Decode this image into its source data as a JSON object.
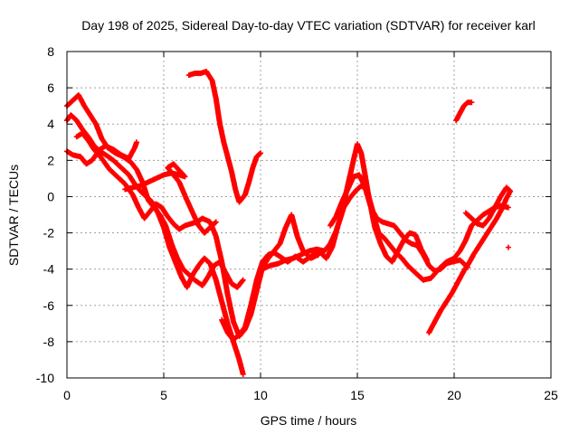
{
  "chart_data": {
    "type": "scatter",
    "title": "Day 198 of 2025, Sidereal Day-to-day VTEC variation (SDTVAR) for receiver karl",
    "xlabel": "GPS time / hours",
    "ylabel": "SDTVAR / TECUs",
    "xlim": [
      0,
      25
    ],
    "ylim": [
      -10,
      8
    ],
    "xticks": [
      "0",
      "5",
      "10",
      "15",
      "20",
      "25"
    ],
    "yticks": [
      "-10",
      "-8",
      "-6",
      "-4",
      "-2",
      "0",
      "2",
      "4",
      "6",
      "8"
    ],
    "grid": true,
    "marker": "plus",
    "color": "#ff0000",
    "series": [
      {
        "points": [
          [
            0,
            5.0
          ],
          [
            0.3,
            5.3
          ],
          [
            0.6,
            5.6
          ],
          [
            0.9,
            5.0
          ],
          [
            1.2,
            4.5
          ],
          [
            1.5,
            4.0
          ],
          [
            1.8,
            3.2
          ],
          [
            2.1,
            2.7
          ],
          [
            2.5,
            2.4
          ],
          [
            2.9,
            2.2
          ],
          [
            3.3,
            1.9
          ],
          [
            3.6,
            1.5
          ],
          [
            3.9,
            0.8
          ],
          [
            4.2,
            -0.2
          ],
          [
            4.5,
            -0.6
          ],
          [
            4.8,
            -1.0
          ],
          [
            5.1,
            -1.6
          ],
          [
            5.4,
            -2.6
          ],
          [
            5.7,
            -3.4
          ],
          [
            6.0,
            -4.0
          ],
          [
            6.3,
            -4.3
          ],
          [
            6.6,
            -4.6
          ],
          [
            7.0,
            -4.9
          ],
          [
            7.3,
            -4.4
          ],
          [
            7.6,
            -3.8
          ],
          [
            7.9,
            -3.6
          ],
          [
            8.2,
            -4.2
          ],
          [
            8.5,
            -4.8
          ],
          [
            8.8,
            -5.0
          ],
          [
            9.1,
            -4.6
          ]
        ]
      },
      {
        "points": [
          [
            0,
            4.2
          ],
          [
            0.2,
            4.5
          ],
          [
            0.5,
            4.2
          ],
          [
            0.8,
            3.7
          ],
          [
            1.1,
            3.3
          ],
          [
            1.4,
            2.8
          ],
          [
            1.7,
            2.5
          ],
          [
            2.0,
            2.3
          ],
          [
            2.4,
            2.0
          ],
          [
            2.8,
            1.6
          ],
          [
            3.2,
            1.2
          ],
          [
            3.5,
            0.7
          ],
          [
            3.8,
            0.3
          ],
          [
            4.1,
            0.0
          ],
          [
            4.4,
            -0.3
          ],
          [
            4.7,
            -0.9
          ],
          [
            5.0,
            -1.7
          ],
          [
            5.3,
            -2.8
          ],
          [
            5.6,
            -3.6
          ],
          [
            5.9,
            -4.4
          ],
          [
            6.2,
            -5.0
          ],
          [
            6.5,
            -4.3
          ],
          [
            6.8,
            -3.8
          ],
          [
            7.1,
            -3.4
          ],
          [
            7.4,
            -3.7
          ],
          [
            7.7,
            -4.6
          ],
          [
            8.0,
            -5.8
          ],
          [
            8.3,
            -7.0
          ],
          [
            8.6,
            -8.0
          ],
          [
            8.9,
            -9.0
          ],
          [
            9.1,
            -9.8
          ]
        ]
      },
      {
        "points": [
          [
            0.5,
            3.3
          ],
          [
            0.8,
            3.5
          ],
          [
            1.1,
            3.1
          ],
          [
            1.4,
            2.6
          ],
          [
            1.8,
            2.1
          ],
          [
            2.2,
            1.5
          ],
          [
            2.6,
            1.1
          ],
          [
            3.0,
            0.7
          ],
          [
            3.4,
            0.1
          ],
          [
            3.7,
            -0.6
          ],
          [
            4.0,
            -1.2
          ],
          [
            4.3,
            -0.8
          ],
          [
            4.6,
            -0.4
          ],
          [
            4.9,
            -0.6
          ],
          [
            5.2,
            -1.1
          ],
          [
            5.5,
            -1.5
          ],
          [
            5.8,
            -1.8
          ],
          [
            6.1,
            -1.6
          ],
          [
            6.4,
            -1.5
          ],
          [
            6.7,
            -1.4
          ],
          [
            7.0,
            -1.2
          ],
          [
            7.4,
            -1.4
          ],
          [
            7.7,
            -2.2
          ],
          [
            8.0,
            -3.6
          ],
          [
            8.3,
            -5.4
          ],
          [
            8.6,
            -6.9
          ],
          [
            8.9,
            -7.7
          ],
          [
            9.2,
            -7.3
          ],
          [
            9.5,
            -6.5
          ],
          [
            9.8,
            -5.2
          ],
          [
            10.1,
            -3.9
          ],
          [
            10.4,
            -3.4
          ],
          [
            10.7,
            -3.0
          ],
          [
            11.0,
            -2.6
          ],
          [
            11.3,
            -1.7
          ],
          [
            11.6,
            -1.0
          ],
          [
            11.9,
            -2.2
          ],
          [
            12.2,
            -3.0
          ],
          [
            12.6,
            -3.4
          ],
          [
            13.0,
            -3.2
          ]
        ]
      },
      {
        "points": [
          [
            0,
            2.5
          ],
          [
            0.3,
            2.3
          ],
          [
            0.7,
            2.2
          ],
          [
            1.0,
            1.8
          ],
          [
            1.3,
            2.0
          ],
          [
            1.7,
            2.6
          ],
          [
            2.0,
            2.8
          ],
          [
            2.4,
            2.6
          ],
          [
            2.8,
            2.3
          ],
          [
            3.2,
            2.1
          ],
          [
            3.5,
            2.7
          ],
          [
            3.6,
            3.0
          ]
        ]
      },
      {
        "points": [
          [
            3.0,
            0.4
          ],
          [
            3.4,
            0.5
          ],
          [
            3.8,
            0.6
          ],
          [
            4.2,
            0.8
          ],
          [
            4.6,
            1.0
          ],
          [
            5.0,
            1.2
          ],
          [
            5.4,
            1.3
          ],
          [
            5.8,
            1.2
          ],
          [
            6.1,
            1.1
          ],
          [
            5.5,
            1.8
          ],
          [
            5.2,
            1.6
          ],
          [
            5.8,
            0.8
          ],
          [
            6.2,
            -0.2
          ],
          [
            6.5,
            -0.9
          ],
          [
            6.8,
            -1.6
          ],
          [
            7.1,
            -2.0
          ],
          [
            7.4,
            -1.7
          ],
          [
            7.7,
            -1.4
          ]
        ]
      },
      {
        "points": [
          [
            6.3,
            6.7
          ],
          [
            6.6,
            6.8
          ],
          [
            6.9,
            6.8
          ],
          [
            7.2,
            6.9
          ],
          [
            7.5,
            6.4
          ],
          [
            7.7,
            5.4
          ],
          [
            7.9,
            4.0
          ],
          [
            8.1,
            3.0
          ],
          [
            8.3,
            2.2
          ],
          [
            8.5,
            1.4
          ],
          [
            8.7,
            0.4
          ],
          [
            8.9,
            -0.3
          ],
          [
            9.2,
            0.1
          ],
          [
            9.4,
            0.8
          ],
          [
            9.6,
            1.6
          ],
          [
            9.8,
            2.2
          ],
          [
            10.0,
            2.4
          ]
        ]
      },
      {
        "points": [
          [
            8.0,
            -6.8
          ],
          [
            8.3,
            -7.5
          ],
          [
            8.6,
            -7.9
          ],
          [
            8.9,
            -7.6
          ],
          [
            9.2,
            -7.2
          ],
          [
            9.5,
            -6.0
          ],
          [
            9.8,
            -4.6
          ],
          [
            10.1,
            -3.6
          ],
          [
            10.4,
            -3.2
          ],
          [
            10.7,
            -3.1
          ],
          [
            11.0,
            -3.3
          ],
          [
            11.4,
            -3.6
          ],
          [
            11.8,
            -3.3
          ],
          [
            12.2,
            -3.6
          ],
          [
            12.6,
            -3.3
          ],
          [
            13.0,
            -3.0
          ],
          [
            13.4,
            -3.4
          ],
          [
            13.7,
            -2.8
          ],
          [
            14.0,
            -1.6
          ],
          [
            14.3,
            -0.6
          ],
          [
            14.6,
            -0.1
          ],
          [
            14.9,
            0.3
          ],
          [
            15.2,
            0.6
          ],
          [
            15.5,
            0.4
          ],
          [
            15.8,
            -0.9
          ],
          [
            16.1,
            -2.0
          ],
          [
            16.4,
            -2.3
          ],
          [
            16.7,
            -2.7
          ],
          [
            17.0,
            -3.1
          ],
          [
            17.3,
            -3.4
          ],
          [
            17.6,
            -3.8
          ],
          [
            18.0,
            -4.2
          ],
          [
            18.4,
            -4.6
          ],
          [
            18.8,
            -4.5
          ],
          [
            19.2,
            -4.0
          ],
          [
            19.6,
            -3.6
          ],
          [
            20.0,
            -3.4
          ],
          [
            20.3,
            -3.0
          ],
          [
            20.6,
            -2.4
          ],
          [
            20.9,
            -1.6
          ],
          [
            21.2,
            -1.3
          ],
          [
            21.5,
            -1.0
          ],
          [
            21.8,
            -0.8
          ],
          [
            22.1,
            -0.6
          ],
          [
            22.4,
            -0.5
          ],
          [
            22.8,
            -0.6
          ]
        ]
      },
      {
        "points": [
          [
            10.1,
            -4.0
          ],
          [
            10.5,
            -3.8
          ],
          [
            10.9,
            -3.7
          ],
          [
            11.3,
            -3.5
          ],
          [
            11.7,
            -3.4
          ],
          [
            12.1,
            -3.2
          ],
          [
            12.5,
            -3.0
          ],
          [
            12.9,
            -2.9
          ],
          [
            13.3,
            -3.0
          ],
          [
            13.6,
            -2.6
          ],
          [
            13.9,
            -1.9
          ],
          [
            14.2,
            -0.9
          ],
          [
            14.5,
            0.6
          ],
          [
            14.8,
            2.0
          ],
          [
            15.0,
            2.9
          ],
          [
            15.2,
            2.4
          ],
          [
            15.4,
            1.2
          ],
          [
            15.6,
            -0.1
          ],
          [
            15.8,
            -0.8
          ],
          [
            16.0,
            -1.2
          ],
          [
            16.3,
            -1.4
          ],
          [
            16.6,
            -1.5
          ],
          [
            16.9,
            -1.6
          ],
          [
            17.2,
            -2.0
          ],
          [
            17.5,
            -2.4
          ],
          [
            17.8,
            -2.6
          ],
          [
            18.1,
            -2.7
          ],
          [
            18.4,
            -3.2
          ],
          [
            18.7,
            -3.8
          ],
          [
            19.0,
            -4.1
          ],
          [
            19.3,
            -4.0
          ],
          [
            19.6,
            -3.7
          ],
          [
            19.9,
            -3.6
          ],
          [
            20.3,
            -3.5
          ],
          [
            20.7,
            -3.9
          ]
        ]
      },
      {
        "points": [
          [
            13.6,
            -1.6
          ],
          [
            13.9,
            -1.1
          ],
          [
            14.2,
            -0.3
          ],
          [
            14.5,
            0.4
          ],
          [
            14.8,
            1.1
          ],
          [
            15.1,
            1.2
          ],
          [
            15.4,
            0.5
          ],
          [
            15.7,
            -0.6
          ],
          [
            15.9,
            -1.7
          ],
          [
            16.2,
            -2.6
          ],
          [
            16.5,
            -3.3
          ],
          [
            16.8,
            -3.6
          ],
          [
            17.1,
            -3.0
          ],
          [
            17.4,
            -2.4
          ],
          [
            17.7,
            -2.0
          ],
          [
            18.0,
            -2.1
          ],
          [
            18.3,
            -2.9
          ],
          [
            18.6,
            -3.5
          ]
        ]
      },
      {
        "points": [
          [
            18.7,
            -7.5
          ],
          [
            19.0,
            -6.9
          ],
          [
            19.3,
            -6.3
          ],
          [
            19.6,
            -5.8
          ],
          [
            19.9,
            -5.3
          ],
          [
            20.2,
            -4.7
          ],
          [
            20.5,
            -4.1
          ],
          [
            20.8,
            -3.6
          ],
          [
            21.0,
            -3.2
          ],
          [
            21.3,
            -2.7
          ],
          [
            21.6,
            -2.2
          ],
          [
            21.9,
            -1.7
          ],
          [
            22.2,
            -1.2
          ],
          [
            22.5,
            -0.6
          ],
          [
            22.7,
            -0.1
          ],
          [
            22.9,
            0.3
          ],
          [
            22.7,
            0.5
          ],
          [
            22.4,
            0.0
          ],
          [
            22.1,
            -0.6
          ],
          [
            21.8,
            -1.2
          ],
          [
            21.5,
            -1.6
          ],
          [
            21.2,
            -1.5
          ],
          [
            20.9,
            -1.2
          ],
          [
            20.6,
            -0.9
          ]
        ]
      },
      {
        "points": [
          [
            20.1,
            4.2
          ],
          [
            20.3,
            4.6
          ],
          [
            20.5,
            5.0
          ],
          [
            20.7,
            5.2
          ],
          [
            20.9,
            5.2
          ]
        ]
      },
      {
        "points": [
          [
            22.8,
            -2.8
          ]
        ]
      }
    ]
  }
}
